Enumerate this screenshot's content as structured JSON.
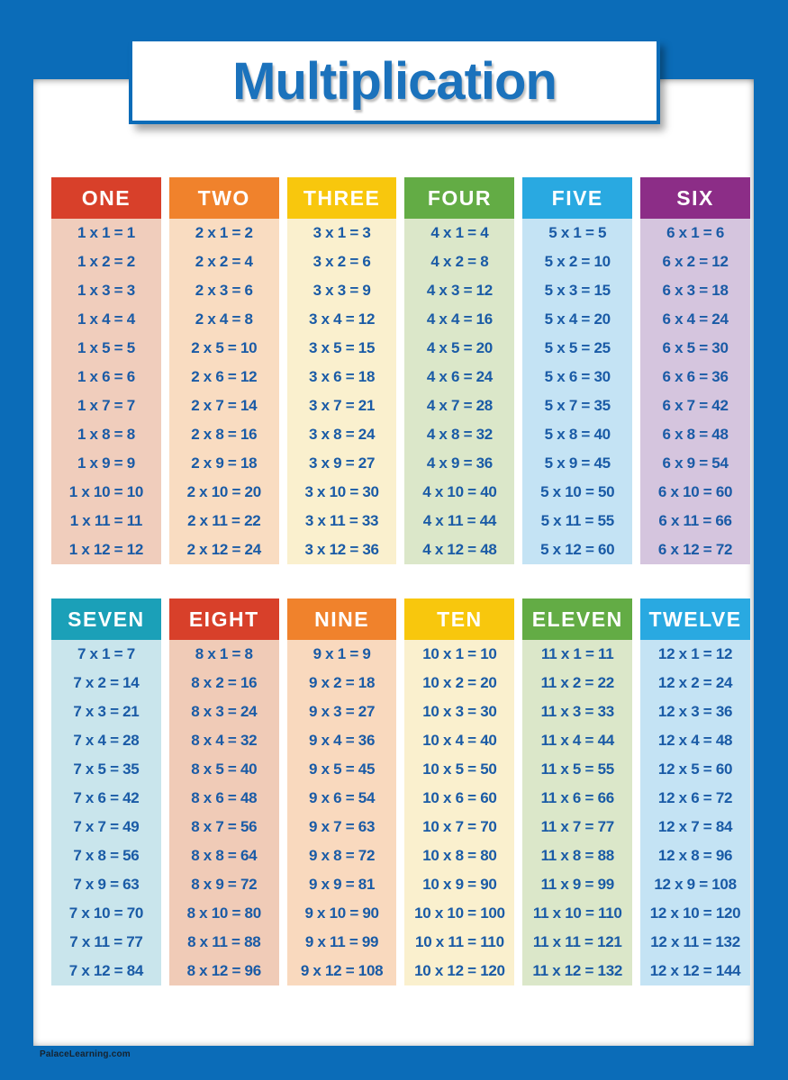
{
  "poster": {
    "title": "Multiplication",
    "footer": "PalaceLearning.com"
  },
  "colors": {
    "frame": "#0B6CB8",
    "title_text": "#1B72BC",
    "fact_text": "#1A5BA6",
    "header_text": "#FFFFFF",
    "page": "#FFFFFF"
  },
  "tables": [
    {
      "columns": [
        {
          "label": "ONE",
          "header_color": "#D8402A",
          "body_color": "#F0CDBC",
          "facts": [
            "1 x 1 = 1",
            "1 x 2 = 2",
            "1 x 3 = 3",
            "1 x 4 = 4",
            "1 x 5 = 5",
            "1 x 6 = 6",
            "1 x 7 = 7",
            "1 x 8 = 8",
            "1 x 9 = 9",
            "1 x 10 = 10",
            "1 x 11 = 11",
            "1 x 12 = 12"
          ]
        },
        {
          "label": "TWO",
          "header_color": "#F0822C",
          "body_color": "#F9DCC1",
          "facts": [
            "2 x 1 = 2",
            "2 x 2 = 4",
            "2 x 3 = 6",
            "2 x 4 = 8",
            "2 x 5 = 10",
            "2 x 6 = 12",
            "2 x 7 = 14",
            "2 x 8 = 16",
            "2 x 9 = 18",
            "2 x 10 = 20",
            "2 x 11 = 22",
            "2 x 12 = 24"
          ]
        },
        {
          "label": "THREE",
          "header_color": "#F8C70D",
          "body_color": "#FAF0CE",
          "facts": [
            "3 x 1 = 3",
            "3 x 2 = 6",
            "3 x 3 = 9",
            "3 x 4 = 12",
            "3 x 5 = 15",
            "3 x 6 = 18",
            "3 x 7 = 21",
            "3 x 8 = 24",
            "3 x 9 = 27",
            "3 x 10 = 30",
            "3 x 11 = 33",
            "3 x 12 = 36"
          ]
        },
        {
          "label": "FOUR",
          "header_color": "#63AC45",
          "body_color": "#DBE7C9",
          "facts": [
            "4 x 1 = 4",
            "4 x 2 = 8",
            "4 x 3 = 12",
            "4 x 4 = 16",
            "4 x 5 = 20",
            "4 x 6 = 24",
            "4 x 7 = 28",
            "4 x 8 = 32",
            "4 x 9 = 36",
            "4 x 10 = 40",
            "4 x 11 = 44",
            "4 x 12 = 48"
          ]
        },
        {
          "label": "FIVE",
          "header_color": "#29A9E1",
          "body_color": "#C4E3F4",
          "facts": [
            "5 x 1 = 5",
            "5 x 2 = 10",
            "5 x 3 = 15",
            "5 x 4 = 20",
            "5 x 5 = 25",
            "5 x 6 = 30",
            "5 x 7 = 35",
            "5 x 8 = 40",
            "5 x 9 = 45",
            "5 x 10 = 50",
            "5 x 11 = 55",
            "5 x 12 = 60"
          ]
        },
        {
          "label": "SIX",
          "header_color": "#8C2D87",
          "body_color": "#D5C5DE",
          "facts": [
            "6 x 1 = 6",
            "6 x 2 = 12",
            "6 x 3 = 18",
            "6 x 4 = 24",
            "6 x 5 = 30",
            "6 x 6 = 36",
            "6 x 7 = 42",
            "6 x 8 = 48",
            "6 x 9 = 54",
            "6 x 10 = 60",
            "6 x 11 = 66",
            "6 x 12 = 72"
          ]
        }
      ]
    },
    {
      "columns": [
        {
          "label": "SEVEN",
          "header_color": "#1BA0B8",
          "body_color": "#C9E5EC",
          "facts": [
            "7 x 1 = 7",
            "7 x 2 = 14",
            "7 x 3 = 21",
            "7 x 4 = 28",
            "7 x 5 = 35",
            "7 x 6 = 42",
            "7 x 7 = 49",
            "7 x 8 = 56",
            "7 x 9 = 63",
            "7 x 10 = 70",
            "7 x 11 = 77",
            "7 x 12 = 84"
          ]
        },
        {
          "label": "EIGHT",
          "header_color": "#D8402A",
          "body_color": "#F0CBB7",
          "facts": [
            "8 x 1 = 8",
            "8 x 2 = 16",
            "8 x 3 = 24",
            "8 x 4 = 32",
            "8 x 5 = 40",
            "8 x 6 = 48",
            "8 x 7 = 56",
            "8 x 8 = 64",
            "8 x 9 = 72",
            "8 x 10 = 80",
            "8 x 11 = 88",
            "8 x 12 = 96"
          ]
        },
        {
          "label": "NINE",
          "header_color": "#F0822C",
          "body_color": "#F9D9BE",
          "facts": [
            "9 x 1 = 9",
            "9 x 2 = 18",
            "9 x 3 = 27",
            "9 x 4 = 36",
            "9 x 5 = 45",
            "9 x 6 = 54",
            "9 x 7 = 63",
            "9 x 8 = 72",
            "9 x 9 = 81",
            "9 x 10 = 90",
            "9 x 11 = 99",
            "9 x 12 = 108"
          ]
        },
        {
          "label": "TEN",
          "header_color": "#F8C70D",
          "body_color": "#FAF0CE",
          "facts": [
            "10 x 1 = 10",
            "10 x 2 = 20",
            "10 x 3 = 30",
            "10 x 4 = 40",
            "10 x 5 = 50",
            "10 x 6 = 60",
            "10 x 7 = 70",
            "10 x 8 = 80",
            "10 x 9 = 90",
            "10 x 10 = 100",
            "10 x 11 = 110",
            "10 x 12 = 120"
          ]
        },
        {
          "label": "ELEVEN",
          "header_color": "#63AC45",
          "body_color": "#DBE7C9",
          "facts": [
            "11 x 1 = 11",
            "11 x 2 = 22",
            "11 x 3 = 33",
            "11 x 4 = 44",
            "11 x 5 = 55",
            "11 x 6 = 66",
            "11 x 7 = 77",
            "11 x 8 = 88",
            "11 x 9 = 99",
            "11 x 10 = 110",
            "11 x 11 = 121",
            "11 x 12 = 132"
          ]
        },
        {
          "label": "TWELVE",
          "header_color": "#29A9E1",
          "body_color": "#C4E3F4",
          "facts": [
            "12 x 1 = 12",
            "12 x 2 = 24",
            "12 x 3 = 36",
            "12 x 4 = 48",
            "12 x 5 = 60",
            "12 x 6 = 72",
            "12 x 7 = 84",
            "12 x 8 = 96",
            "12 x 9 = 108",
            "12 x 10 = 120",
            "12 x 11 = 132",
            "12 x 12 = 144"
          ]
        }
      ]
    }
  ]
}
